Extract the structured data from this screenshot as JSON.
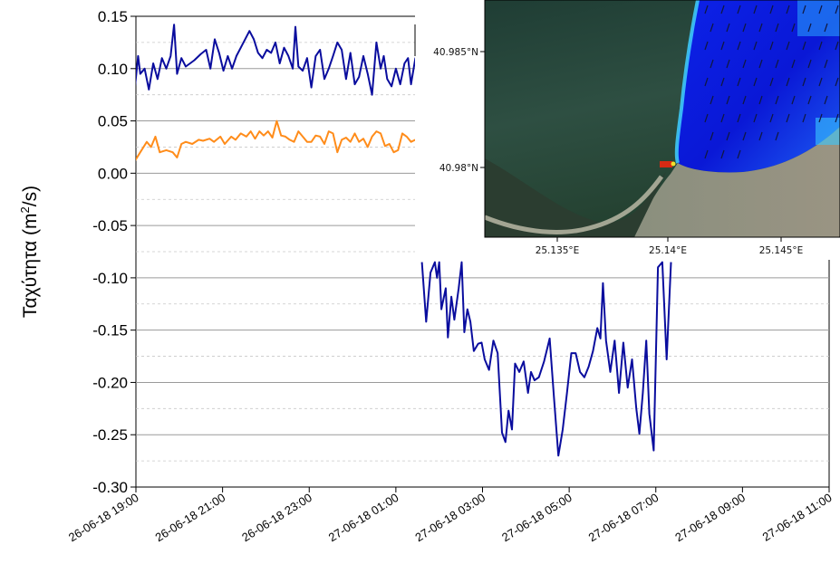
{
  "chart_data": {
    "type": "line",
    "ylabel_text": "Ταχύτητα (m",
    "ylabel_sup": "2",
    "ylabel_tail": "/s)",
    "ylim": [
      -0.3,
      0.15
    ],
    "yticks": [
      0.15,
      0.1,
      0.05,
      0.0,
      -0.05,
      -0.1,
      -0.15,
      -0.2,
      -0.25,
      -0.3
    ],
    "ytick_labels": [
      "0.15",
      "0.10",
      "0.05",
      "0.00",
      "-0.05",
      "-0.10",
      "-0.15",
      "-0.20",
      "-0.25",
      "-0.30"
    ],
    "xlim": [
      "2018-06-26 19:00",
      "2018-06-27 11:00"
    ],
    "xtick_labels": [
      "26-06-18 19:00",
      "26-06-18 21:00",
      "26-06-18 23:00",
      "27-06-18 01:00",
      "27-06-18 03:00",
      "27-06-18 05:00",
      "27-06-18 07:00",
      "27-06-18 09:00",
      "27-06-18 11:00"
    ],
    "grid": true,
    "series": [
      {
        "color": "#0a0d9e",
        "segments": [
          [
            [
              -0.1875,
              -0.097
            ],
            [
              -0.1,
              0.05
            ],
            [
              0.05,
              0.112
            ],
            [
              0.1,
              0.095
            ],
            [
              0.2,
              0.1
            ],
            [
              0.3,
              0.08
            ],
            [
              0.4,
              0.105
            ],
            [
              0.5,
              0.09
            ],
            [
              0.6,
              0.11
            ],
            [
              0.7,
              0.1
            ],
            [
              0.8,
              0.112
            ],
            [
              0.88,
              0.142
            ],
            [
              0.95,
              0.095
            ],
            [
              1.05,
              0.11
            ],
            [
              1.15,
              0.102
            ],
            [
              1.25,
              0.105
            ],
            [
              1.35,
              0.108
            ],
            [
              1.5,
              0.114
            ],
            [
              1.62,
              0.118
            ],
            [
              1.72,
              0.1
            ],
            [
              1.82,
              0.128
            ],
            [
              1.92,
              0.115
            ],
            [
              2.02,
              0.098
            ],
            [
              2.12,
              0.112
            ],
            [
              2.22,
              0.1
            ],
            [
              2.32,
              0.112
            ],
            [
              2.42,
              0.12
            ],
            [
              2.52,
              0.128
            ],
            [
              2.62,
              0.136
            ],
            [
              2.72,
              0.128
            ],
            [
              2.82,
              0.115
            ],
            [
              2.92,
              0.11
            ],
            [
              3.02,
              0.118
            ],
            [
              3.12,
              0.115
            ],
            [
              3.22,
              0.125
            ],
            [
              3.32,
              0.105
            ],
            [
              3.42,
              0.12
            ],
            [
              3.52,
              0.112
            ],
            [
              3.62,
              0.1
            ],
            [
              3.68,
              0.14
            ],
            [
              3.75,
              0.102
            ],
            [
              3.85,
              0.098
            ],
            [
              3.95,
              0.11
            ],
            [
              4.05,
              0.082
            ],
            [
              4.15,
              0.112
            ],
            [
              4.25,
              0.118
            ],
            [
              4.35,
              0.09
            ],
            [
              4.45,
              0.1
            ],
            [
              4.55,
              0.112
            ],
            [
              4.65,
              0.125
            ],
            [
              4.75,
              0.118
            ],
            [
              4.85,
              0.09
            ],
            [
              4.95,
              0.115
            ],
            [
              5.05,
              0.085
            ],
            [
              5.15,
              0.092
            ],
            [
              5.25,
              0.112
            ],
            [
              5.35,
              0.095
            ],
            [
              5.45,
              0.075
            ],
            [
              5.55,
              0.125
            ],
            [
              5.65,
              0.1
            ],
            [
              5.72,
              0.112
            ],
            [
              5.8,
              0.09
            ],
            [
              5.9,
              0.083
            ],
            [
              6.0,
              0.1
            ],
            [
              6.1,
              0.085
            ],
            [
              6.2,
              0.105
            ],
            [
              6.28,
              0.11
            ],
            [
              6.35,
              0.085
            ],
            [
              6.45,
              0.11
            ],
            [
              6.55,
              0.06
            ]
          ],
          [
            [
              6.6,
              -0.085
            ],
            [
              6.7,
              -0.142
            ],
            [
              6.8,
              -0.095
            ],
            [
              6.9,
              -0.085
            ],
            [
              6.95,
              -0.1
            ],
            [
              7.0,
              -0.085
            ],
            [
              7.05,
              -0.13
            ],
            [
              7.15,
              -0.11
            ],
            [
              7.2,
              -0.157
            ],
            [
              7.28,
              -0.118
            ],
            [
              7.35,
              -0.14
            ],
            [
              7.45,
              -0.11
            ],
            [
              7.52,
              -0.085
            ],
            [
              7.58,
              -0.152
            ],
            [
              7.65,
              -0.13
            ],
            [
              7.72,
              -0.142
            ],
            [
              7.8,
              -0.17
            ],
            [
              7.9,
              -0.163
            ],
            [
              7.98,
              -0.162
            ],
            [
              8.05,
              -0.178
            ],
            [
              8.15,
              -0.188
            ],
            [
              8.25,
              -0.16
            ],
            [
              8.35,
              -0.172
            ],
            [
              8.45,
              -0.248
            ],
            [
              8.53,
              -0.257
            ],
            [
              8.6,
              -0.227
            ],
            [
              8.68,
              -0.245
            ],
            [
              8.75,
              -0.182
            ],
            [
              8.85,
              -0.19
            ],
            [
              8.95,
              -0.18
            ],
            [
              9.05,
              -0.21
            ],
            [
              9.12,
              -0.19
            ],
            [
              9.2,
              -0.198
            ],
            [
              9.3,
              -0.195
            ],
            [
              9.42,
              -0.18
            ],
            [
              9.55,
              -0.158
            ],
            [
              9.65,
              -0.215
            ],
            [
              9.75,
              -0.27
            ],
            [
              9.85,
              -0.245
            ],
            [
              9.95,
              -0.21
            ],
            [
              10.05,
              -0.172
            ],
            [
              10.15,
              -0.172
            ],
            [
              10.25,
              -0.19
            ],
            [
              10.35,
              -0.195
            ],
            [
              10.45,
              -0.185
            ],
            [
              10.55,
              -0.17
            ],
            [
              10.65,
              -0.148
            ],
            [
              10.72,
              -0.158
            ],
            [
              10.78,
              -0.105
            ],
            [
              10.85,
              -0.16
            ],
            [
              10.95,
              -0.19
            ],
            [
              11.05,
              -0.16
            ],
            [
              11.15,
              -0.21
            ],
            [
              11.25,
              -0.162
            ],
            [
              11.35,
              -0.205
            ],
            [
              11.45,
              -0.178
            ],
            [
              11.55,
              -0.225
            ],
            [
              11.62,
              -0.249
            ],
            [
              11.7,
              -0.21
            ],
            [
              11.78,
              -0.16
            ],
            [
              11.85,
              -0.23
            ],
            [
              11.95,
              -0.265
            ],
            [
              12.05,
              -0.09
            ],
            [
              12.15,
              -0.085
            ],
            [
              12.25,
              -0.178
            ],
            [
              12.35,
              -0.085
            ]
          ]
        ]
      },
      {
        "color": "#ff8c1a",
        "segments": [
          [
            [
              -0.1875,
              -0.005
            ],
            [
              -0.05,
              0.01
            ],
            [
              0.1,
              0.02
            ],
            [
              0.25,
              0.03
            ],
            [
              0.35,
              0.025
            ],
            [
              0.45,
              0.035
            ],
            [
              0.55,
              0.02
            ],
            [
              0.7,
              0.022
            ],
            [
              0.85,
              0.02
            ],
            [
              0.95,
              0.015
            ],
            [
              1.05,
              0.028
            ],
            [
              1.15,
              0.03
            ],
            [
              1.3,
              0.028
            ],
            [
              1.45,
              0.032
            ],
            [
              1.55,
              0.031
            ],
            [
              1.7,
              0.033
            ],
            [
              1.8,
              0.03
            ],
            [
              1.95,
              0.035
            ],
            [
              2.05,
              0.028
            ],
            [
              2.2,
              0.035
            ],
            [
              2.3,
              0.032
            ],
            [
              2.42,
              0.038
            ],
            [
              2.55,
              0.035
            ],
            [
              2.65,
              0.04
            ],
            [
              2.75,
              0.033
            ],
            [
              2.85,
              0.04
            ],
            [
              2.95,
              0.036
            ],
            [
              3.05,
              0.04
            ],
            [
              3.15,
              0.034
            ],
            [
              3.25,
              0.05
            ],
            [
              3.35,
              0.036
            ],
            [
              3.45,
              0.035
            ],
            [
              3.55,
              0.032
            ],
            [
              3.65,
              0.03
            ],
            [
              3.75,
              0.04
            ],
            [
              3.85,
              0.035
            ],
            [
              3.95,
              0.03
            ],
            [
              4.05,
              0.03
            ],
            [
              4.15,
              0.036
            ],
            [
              4.25,
              0.035
            ],
            [
              4.35,
              0.028
            ],
            [
              4.45,
              0.04
            ],
            [
              4.55,
              0.038
            ],
            [
              4.65,
              0.02
            ],
            [
              4.75,
              0.032
            ],
            [
              4.85,
              0.034
            ],
            [
              4.95,
              0.03
            ],
            [
              5.05,
              0.038
            ],
            [
              5.15,
              0.03
            ],
            [
              5.25,
              0.033
            ],
            [
              5.35,
              0.025
            ],
            [
              5.45,
              0.035
            ],
            [
              5.55,
              0.04
            ],
            [
              5.65,
              0.038
            ],
            [
              5.75,
              0.026
            ],
            [
              5.85,
              0.028
            ],
            [
              5.95,
              0.02
            ],
            [
              6.05,
              0.022
            ],
            [
              6.15,
              0.038
            ],
            [
              6.25,
              0.035
            ],
            [
              6.35,
              0.03
            ],
            [
              6.45,
              0.032
            ],
            [
              6.55,
              0.025
            ]
          ]
        ]
      }
    ]
  },
  "inset_map": {
    "lat_labels": [
      "40.985°N",
      "40.98°N"
    ],
    "lon_labels": [
      "25.135°E",
      "25.14°E",
      "25.145°E"
    ]
  }
}
